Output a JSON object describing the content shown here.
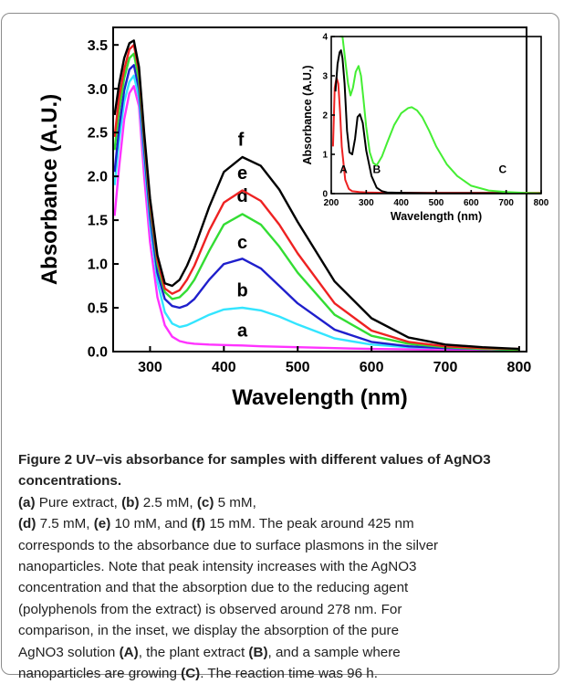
{
  "chart_data": [
    {
      "type": "line",
      "xlabel": "Wavelength (nm)",
      "ylabel": "Absorbance (A.U.)",
      "xlim": [
        250,
        810
      ],
      "ylim": [
        0,
        3.7
      ],
      "xticks": [
        300,
        400,
        500,
        600,
        700,
        800
      ],
      "yticks": [
        0.0,
        0.5,
        1.0,
        1.5,
        2.0,
        2.5,
        3.0,
        3.5
      ],
      "xtick_labels": [
        "300",
        "400",
        "500",
        "600",
        "700",
        "800"
      ],
      "ytick_labels": [
        "0.0",
        "0.5",
        "1.0",
        "1.5",
        "2.0",
        "2.5",
        "3.0",
        "3.5"
      ],
      "grid": false,
      "series": [
        {
          "name": "a",
          "color": "#ff33ff",
          "label_pos": [
            425,
            0.17
          ],
          "x": [
            252,
            258,
            265,
            272,
            278,
            285,
            292,
            300,
            310,
            320,
            330,
            340,
            350,
            360,
            380,
            400,
            425,
            450,
            500,
            550,
            600,
            650,
            700,
            750,
            800
          ],
          "y": [
            1.55,
            2.1,
            2.65,
            2.95,
            3.03,
            2.8,
            2.0,
            1.25,
            0.62,
            0.3,
            0.17,
            0.12,
            0.1,
            0.09,
            0.08,
            0.075,
            0.07,
            0.06,
            0.05,
            0.04,
            0.03,
            0.025,
            0.02,
            0.015,
            0.01
          ]
        },
        {
          "name": "b",
          "color": "#33e5ff",
          "label_pos": [
            425,
            0.63
          ],
          "x": [
            252,
            258,
            265,
            272,
            278,
            285,
            292,
            300,
            310,
            320,
            330,
            340,
            345,
            350,
            360,
            380,
            400,
            425,
            450,
            475,
            500,
            550,
            600,
            650,
            700,
            750,
            800
          ],
          "y": [
            1.9,
            2.4,
            2.85,
            3.08,
            3.15,
            2.9,
            2.2,
            1.45,
            0.8,
            0.45,
            0.32,
            0.28,
            0.29,
            0.3,
            0.34,
            0.42,
            0.48,
            0.5,
            0.47,
            0.4,
            0.31,
            0.15,
            0.08,
            0.05,
            0.04,
            0.03,
            0.02
          ]
        },
        {
          "name": "c",
          "color": "#1f1fcc",
          "label_pos": [
            425,
            1.18
          ],
          "x": [
            252,
            258,
            265,
            272,
            278,
            285,
            292,
            300,
            310,
            320,
            330,
            340,
            350,
            360,
            380,
            400,
            425,
            450,
            475,
            500,
            550,
            600,
            650,
            700,
            750,
            800
          ],
          "y": [
            2.05,
            2.55,
            2.98,
            3.22,
            3.27,
            3.0,
            2.3,
            1.55,
            0.9,
            0.6,
            0.52,
            0.5,
            0.53,
            0.6,
            0.82,
            1.0,
            1.06,
            0.95,
            0.75,
            0.55,
            0.25,
            0.11,
            0.06,
            0.04,
            0.03,
            0.02
          ]
        },
        {
          "name": "d",
          "color": "#33dd33",
          "label_pos": [
            425,
            1.71
          ],
          "x": [
            252,
            258,
            265,
            272,
            278,
            285,
            292,
            300,
            310,
            320,
            330,
            340,
            350,
            360,
            380,
            400,
            425,
            450,
            475,
            500,
            550,
            600,
            650,
            700,
            750,
            800
          ],
          "y": [
            2.3,
            2.75,
            3.12,
            3.35,
            3.4,
            3.1,
            2.4,
            1.65,
            1.0,
            0.68,
            0.6,
            0.62,
            0.7,
            0.82,
            1.15,
            1.45,
            1.57,
            1.45,
            1.2,
            0.9,
            0.42,
            0.18,
            0.09,
            0.05,
            0.03,
            0.02
          ]
        },
        {
          "name": "e",
          "color": "#ee2222",
          "label_pos": [
            425,
            1.97
          ],
          "x": [
            252,
            258,
            265,
            272,
            278,
            285,
            292,
            300,
            310,
            320,
            330,
            340,
            350,
            360,
            380,
            400,
            425,
            450,
            475,
            500,
            550,
            600,
            650,
            700,
            750,
            800
          ],
          "y": [
            2.45,
            2.9,
            3.22,
            3.45,
            3.5,
            3.2,
            2.45,
            1.7,
            1.05,
            0.72,
            0.66,
            0.7,
            0.82,
            0.98,
            1.38,
            1.7,
            1.84,
            1.72,
            1.45,
            1.12,
            0.55,
            0.24,
            0.11,
            0.06,
            0.04,
            0.03
          ]
        },
        {
          "name": "f",
          "color": "#000000",
          "label_pos": [
            423,
            2.35
          ],
          "x": [
            252,
            258,
            265,
            272,
            278,
            285,
            292,
            300,
            310,
            320,
            330,
            340,
            350,
            360,
            380,
            400,
            425,
            450,
            475,
            500,
            550,
            600,
            650,
            700,
            750,
            800
          ],
          "y": [
            2.7,
            3.05,
            3.35,
            3.52,
            3.55,
            3.25,
            2.5,
            1.75,
            1.1,
            0.78,
            0.75,
            0.82,
            0.98,
            1.18,
            1.65,
            2.05,
            2.22,
            2.12,
            1.85,
            1.48,
            0.8,
            0.38,
            0.16,
            0.08,
            0.05,
            0.03
          ]
        }
      ]
    },
    {
      "type": "line",
      "xlabel": "Wavelength (nm)",
      "ylabel": "Absorbance (A.U.)",
      "xlim": [
        200,
        800
      ],
      "ylim": [
        0,
        4
      ],
      "xticks": [
        200,
        300,
        400,
        500,
        600,
        700,
        800
      ],
      "yticks": [
        0,
        1,
        2,
        3,
        4
      ],
      "xtick_labels": [
        "200",
        "300",
        "400",
        "500",
        "600",
        "700",
        "800"
      ],
      "ytick_labels": [
        "0",
        "1",
        "2",
        "3",
        "4"
      ],
      "grid": false,
      "series": [
        {
          "name": "A",
          "color": "#ee2222",
          "label_pos": [
            235,
            0.52
          ],
          "x": [
            205,
            210,
            215,
            220,
            225,
            230,
            240,
            250,
            260,
            280,
            300,
            350,
            400,
            500,
            600,
            700,
            800
          ],
          "y": [
            1.2,
            2.7,
            2.95,
            2.8,
            2.1,
            1.2,
            0.35,
            0.12,
            0.06,
            0.04,
            0.03,
            0.02,
            0.02,
            0.02,
            0.02,
            0.02,
            0.02
          ]
        },
        {
          "name": "B",
          "color": "#000000",
          "label_pos": [
            330,
            0.52
          ],
          "x": [
            212,
            218,
            224,
            228,
            232,
            238,
            245,
            252,
            260,
            268,
            275,
            282,
            290,
            300,
            315,
            330,
            345,
            360,
            400,
            500,
            600,
            700,
            800
          ],
          "y": [
            2.6,
            3.3,
            3.6,
            3.65,
            3.45,
            2.8,
            1.6,
            1.05,
            1.0,
            1.4,
            1.95,
            2.02,
            1.8,
            1.1,
            0.45,
            0.15,
            0.06,
            0.03,
            0.02,
            0.01,
            0.01,
            0.01,
            0.01
          ]
        },
        {
          "name": "C",
          "color": "#44ee33",
          "label_pos": [
            690,
            0.52
          ],
          "x": [
            225,
            232,
            240,
            248,
            255,
            262,
            270,
            278,
            285,
            292,
            300,
            310,
            320,
            330,
            345,
            360,
            380,
            400,
            420,
            430,
            445,
            460,
            480,
            500,
            530,
            560,
            600,
            650,
            700,
            750,
            800
          ],
          "y": [
            4.0,
            4.0,
            3.4,
            2.8,
            2.5,
            2.7,
            3.1,
            3.25,
            3.0,
            2.4,
            1.7,
            1.05,
            0.78,
            0.72,
            0.95,
            1.3,
            1.75,
            2.05,
            2.18,
            2.2,
            2.12,
            1.95,
            1.6,
            1.2,
            0.75,
            0.45,
            0.2,
            0.08,
            0.04,
            0.02,
            0.01
          ]
        }
      ]
    }
  ],
  "caption": {
    "title": "Figure 2 UV–vis absorbance for samples with different values of AgNO3 concentrations.",
    "line2_parts": [
      "(a)",
      " Pure extract, ",
      "(b)",
      " 2.5 mM, ",
      "(c)",
      " 5 mM,"
    ],
    "line3_parts": [
      "(d)",
      " 7.5 mM, ",
      "(e)",
      " 10 mM, and ",
      "(f)",
      " 15 mM. The peak around 425 nm"
    ],
    "line4": "corresponds to the absorbance due to surface plasmons in the silver",
    "line5": "nanoparticles. Note that peak intensity increases with the AgNO3",
    "line6": "concentration and that the absorption due to the reducing agent",
    "line7": "(polyphenols from the extract) is observed around 278 nm. For",
    "line8": "comparison, in the inset, we display the absorption of the pure",
    "line9_parts": [
      "AgNO3 solution ",
      "(A)",
      ", the plant extract ",
      "(B)",
      ", and a sample where"
    ],
    "line10_parts": [
      "nanoparticles are growing ",
      "(C)",
      ". The reaction time was 96 h."
    ]
  }
}
